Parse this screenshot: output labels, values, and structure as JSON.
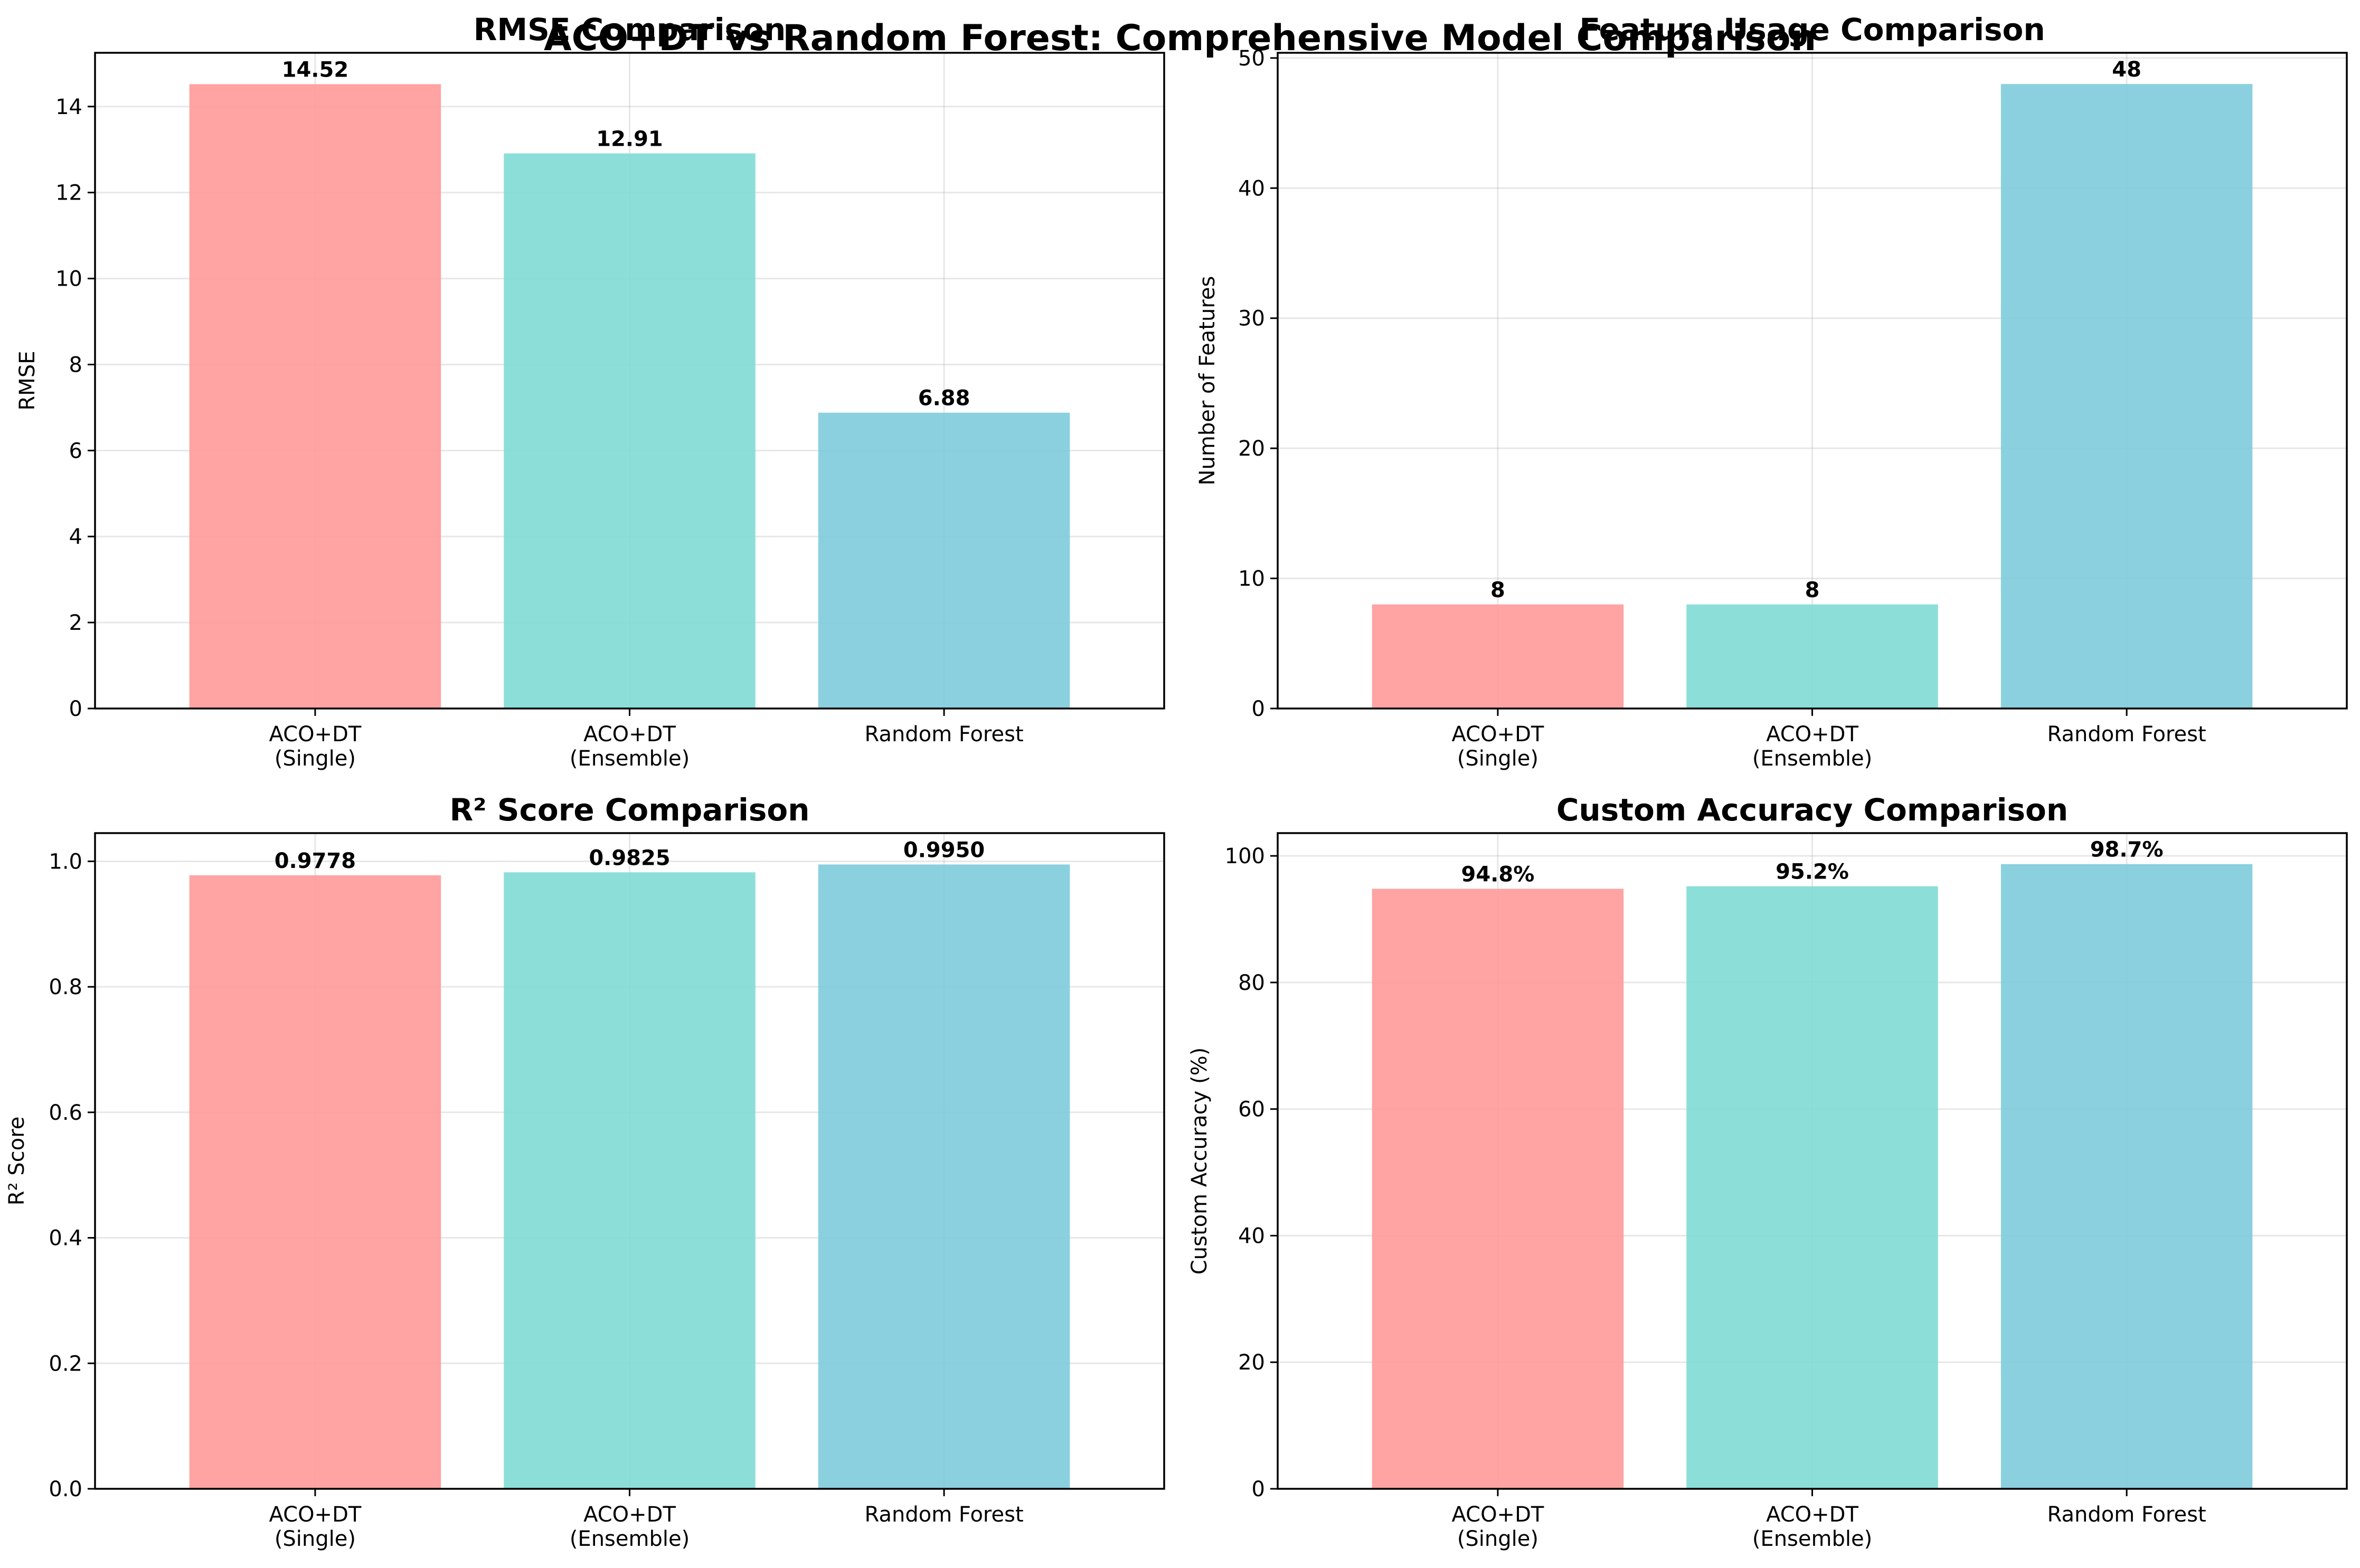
{
  "suptitle": "ACO+DT vs Random Forest: Comprehensive Model Comparison",
  "colors": [
    "#ff9999",
    "#80dbd4",
    "#7ecbdc"
  ],
  "chart_data": [
    {
      "type": "bar",
      "title": "RMSE Comparison",
      "ylabel": "RMSE",
      "categories": [
        "ACO+DT\n(Single)",
        "ACO+DT\n(Ensemble)",
        "Random Forest"
      ],
      "values": [
        14.52,
        12.91,
        6.88
      ],
      "labels": [
        "14.52",
        "12.91",
        "6.88"
      ],
      "ylim": [
        0,
        15.25
      ],
      "yticks": [
        0,
        2,
        4,
        6,
        8,
        10,
        12,
        14
      ],
      "ytick_labels": [
        "0",
        "2",
        "4",
        "6",
        "8",
        "10",
        "12",
        "14"
      ],
      "grid": true
    },
    {
      "type": "bar",
      "title": "Feature Usage Comparison",
      "ylabel": "Number of Features",
      "categories": [
        "ACO+DT\n(Single)",
        "ACO+DT\n(Ensemble)",
        "Random Forest"
      ],
      "values": [
        8,
        8,
        48
      ],
      "labels": [
        "8",
        "8",
        "48"
      ],
      "ylim": [
        0,
        50.4
      ],
      "yticks": [
        0,
        10,
        20,
        30,
        40,
        50
      ],
      "ytick_labels": [
        "0",
        "10",
        "20",
        "30",
        "40",
        "50"
      ],
      "grid": true
    },
    {
      "type": "bar",
      "title": "R² Score Comparison",
      "ylabel": "R² Score",
      "categories": [
        "ACO+DT\n(Single)",
        "ACO+DT\n(Ensemble)",
        "Random Forest"
      ],
      "values": [
        0.9778,
        0.9825,
        0.995
      ],
      "labels": [
        "0.9778",
        "0.9825",
        "0.9950"
      ],
      "ylim": [
        0,
        1.045
      ],
      "yticks": [
        0,
        0.2,
        0.4,
        0.6,
        0.8,
        1.0
      ],
      "ytick_labels": [
        "0.0",
        "0.2",
        "0.4",
        "0.6",
        "0.8",
        "1.0"
      ],
      "grid": true
    },
    {
      "type": "bar",
      "title": "Custom Accuracy Comparison",
      "ylabel": "Custom Accuracy (%)",
      "categories": [
        "ACO+DT\n(Single)",
        "ACO+DT\n(Ensemble)",
        "Random Forest"
      ],
      "values": [
        94.8,
        95.2,
        98.7
      ],
      "labels": [
        "94.8%",
        "95.2%",
        "98.7%"
      ],
      "ylim": [
        0,
        103.6
      ],
      "yticks": [
        0,
        20,
        40,
        60,
        80,
        100
      ],
      "ytick_labels": [
        "0",
        "20",
        "40",
        "60",
        "80",
        "100"
      ],
      "grid": true
    }
  ]
}
